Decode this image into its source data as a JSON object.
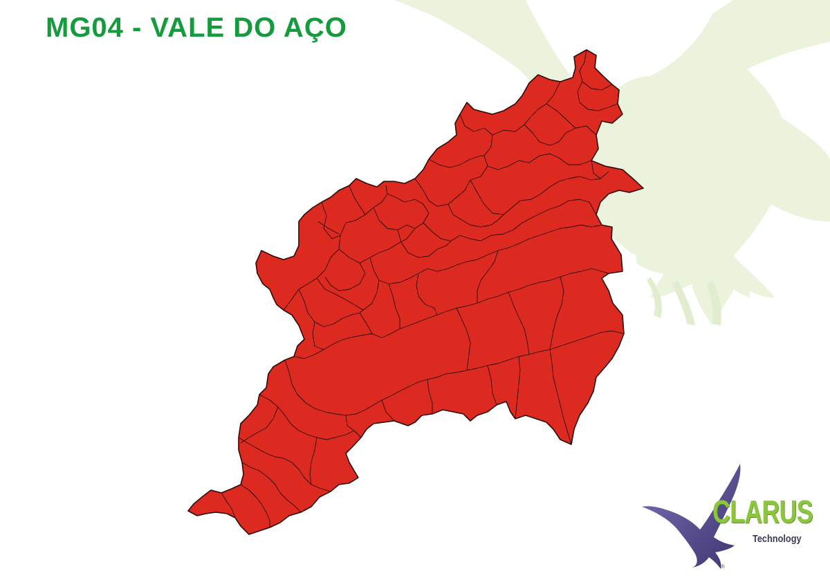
{
  "title": "MG04 - VALE DO AÇO",
  "map": {
    "fill_color": "#dc2a20",
    "border_color": "#2a0a08"
  },
  "watermark": {
    "icon": "eagle-icon",
    "color": "#e8f1d8"
  },
  "logo": {
    "word": "CLARUS",
    "subtitle": "Technology",
    "registered": "®",
    "word_color": "#8cc63f",
    "eagle_color": "#5b4f9a"
  }
}
